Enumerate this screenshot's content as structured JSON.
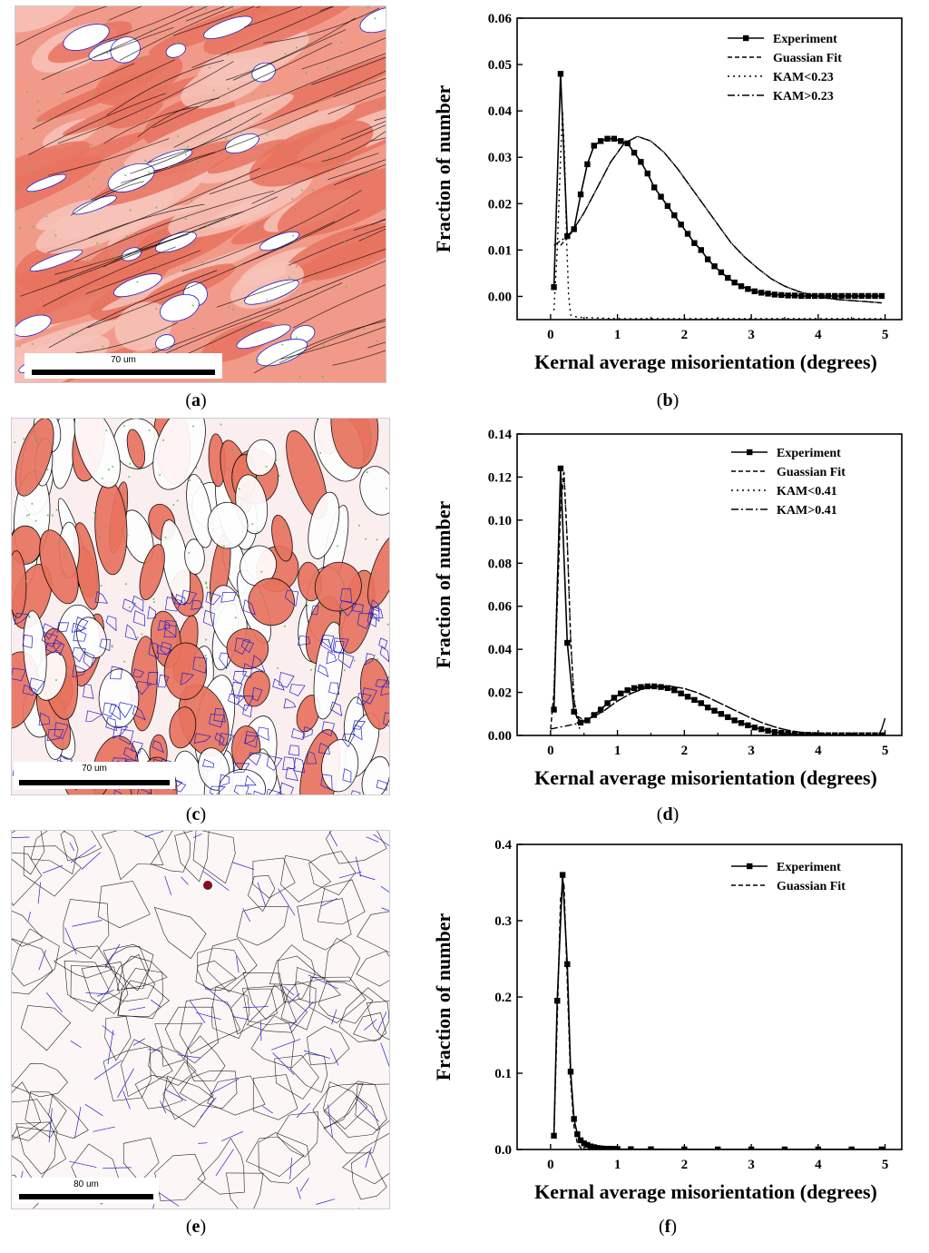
{
  "panels": [
    {
      "id": "a",
      "label": "a"
    },
    {
      "id": "b",
      "label": "b"
    },
    {
      "id": "c",
      "label": "c"
    },
    {
      "id": "d",
      "label": "d"
    },
    {
      "id": "e",
      "label": "e"
    },
    {
      "id": "f",
      "label": "f"
    }
  ],
  "maps": [
    {
      "id": "a",
      "scale_label": "70 um",
      "palette": "red"
    },
    {
      "id": "c",
      "scale_label": "70 um",
      "palette": "mixed"
    },
    {
      "id": "e",
      "scale_label": "80 um",
      "palette": "white"
    }
  ],
  "colors": {
    "deformed": "#e8735f",
    "recrystallized": "#ffffff",
    "boundary_black": "#000000",
    "boundary_blue": "#2020d0",
    "boundary_green": "#3cc83c"
  },
  "chart_data": [
    {
      "id": "b",
      "type": "line",
      "xlabel": "Kernal average misorientation (degrees)",
      "ylabel": "Fraction of number",
      "xlim": [
        -0.5,
        5.25
      ],
      "ylim": [
        -0.005,
        0.06
      ],
      "xticks": [
        "0",
        "1",
        "2",
        "3",
        "4",
        "5"
      ],
      "yticks": [
        "0.00",
        "0.01",
        "0.02",
        "0.03",
        "0.04",
        "0.05",
        "0.06"
      ],
      "legend_position": "top-right",
      "legend": [
        "Experiment",
        "Guassian Fit",
        "KAM<0.23",
        "KAM>0.23"
      ],
      "experiment": {
        "x": [
          0.05,
          0.15,
          0.25,
          0.35,
          0.45,
          0.55,
          0.65,
          0.75,
          0.85,
          0.95,
          1.05,
          1.15,
          1.25,
          1.35,
          1.45,
          1.55,
          1.65,
          1.75,
          1.85,
          1.95,
          2.05,
          2.15,
          2.25,
          2.35,
          2.45,
          2.55,
          2.65,
          2.75,
          2.85,
          2.95,
          3.05,
          3.15,
          3.25,
          3.35,
          3.45,
          3.55,
          3.65,
          3.75,
          3.85,
          3.95,
          4.05,
          4.15,
          4.25,
          4.35,
          4.45,
          4.55,
          4.65,
          4.75,
          4.85,
          4.95
        ],
        "y": [
          0.002,
          0.048,
          0.013,
          0.0145,
          0.022,
          0.0285,
          0.0325,
          0.0335,
          0.034,
          0.034,
          0.0335,
          0.033,
          0.031,
          0.029,
          0.0265,
          0.0235,
          0.0215,
          0.0195,
          0.0175,
          0.0155,
          0.0135,
          0.0115,
          0.01,
          0.008,
          0.0065,
          0.0052,
          0.004,
          0.003,
          0.0022,
          0.0016,
          0.0011,
          0.0008,
          0.0006,
          0.0004,
          0.0003,
          0.0002,
          0.0002,
          0.0001,
          0.0001,
          0.0001,
          0.0001,
          0.0001,
          0.0001,
          0.0001,
          0.0001,
          0.0001,
          0.0001,
          0.0001,
          0.0001,
          0.0001
        ]
      },
      "guassian_fit": {
        "x": [
          0.15,
          0.3,
          0.5,
          0.7,
          0.9,
          1.1,
          1.3,
          1.5,
          1.7,
          1.9,
          2.1,
          2.3,
          2.5,
          2.7,
          2.9,
          3.1,
          3.3,
          3.5,
          3.7,
          3.9,
          4.1,
          4.3,
          4.5,
          4.7,
          4.95
        ],
        "y": [
          0.011,
          0.0135,
          0.018,
          0.0235,
          0.029,
          0.033,
          0.0345,
          0.0335,
          0.031,
          0.0275,
          0.0235,
          0.0195,
          0.0155,
          0.0115,
          0.0085,
          0.006,
          0.0038,
          0.0022,
          0.0011,
          0.0003,
          -0.0003,
          -0.0007,
          -0.0009,
          -0.0011,
          -0.0014
        ]
      },
      "kam_low": {
        "x": [
          0.05,
          0.1,
          0.15,
          0.18,
          0.21,
          0.24,
          0.27,
          0.3,
          0.4,
          1.0,
          2.0,
          3.0,
          4.0,
          4.95
        ],
        "y": [
          -0.003,
          0.01,
          0.03,
          0.04,
          0.03,
          0.012,
          0.0,
          -0.004,
          -0.0045,
          -0.0048,
          -0.0048,
          -0.0048,
          -0.0048,
          -0.0048
        ]
      },
      "kam_high": {
        "x": [
          0.05,
          0.3,
          0.5,
          0.7,
          0.9,
          1.1,
          1.3,
          1.5,
          1.7,
          1.9,
          2.1,
          2.3,
          2.5,
          2.7,
          2.9,
          3.1,
          3.3,
          3.5,
          3.7,
          3.9,
          4.1,
          4.3,
          4.5,
          4.7,
          4.95
        ],
        "y": [
          0.011,
          0.0135,
          0.018,
          0.0235,
          0.029,
          0.033,
          0.0345,
          0.0335,
          0.031,
          0.0275,
          0.0235,
          0.0195,
          0.0155,
          0.0115,
          0.0085,
          0.006,
          0.0038,
          0.0022,
          0.0011,
          0.0003,
          -0.0003,
          -0.0007,
          -0.0009,
          -0.0011,
          -0.0014
        ]
      }
    },
    {
      "id": "d",
      "type": "line",
      "xlabel": "Kernal average misorientation (degrees)",
      "ylabel": "Fraction of number",
      "xlim": [
        -0.5,
        5.25
      ],
      "ylim": [
        0,
        0.14
      ],
      "xticks": [
        "0",
        "1",
        "2",
        "3",
        "4",
        "5"
      ],
      "yticks": [
        "0.00",
        "0.02",
        "0.04",
        "0.06",
        "0.08",
        "0.10",
        "0.12",
        "0.14"
      ],
      "legend_position": "top-right",
      "legend": [
        "Experiment",
        "Guassian Fit",
        "KAM<0.41",
        "KAM>0.41"
      ],
      "experiment": {
        "x": [
          0.05,
          0.15,
          0.25,
          0.35,
          0.45,
          0.55,
          0.65,
          0.75,
          0.85,
          0.95,
          1.05,
          1.15,
          1.25,
          1.35,
          1.45,
          1.55,
          1.65,
          1.75,
          1.85,
          1.95,
          2.05,
          2.15,
          2.25,
          2.35,
          2.45,
          2.55,
          2.65,
          2.75,
          2.85,
          2.95,
          3.05,
          3.15,
          3.25,
          3.35,
          3.45,
          3.55,
          3.65,
          3.75,
          3.85,
          3.95,
          4.05,
          4.15,
          4.25,
          4.35,
          4.45,
          4.55,
          4.65,
          4.75,
          4.85,
          4.95
        ],
        "y": [
          0.012,
          0.124,
          0.043,
          0.011,
          0.006,
          0.007,
          0.0095,
          0.012,
          0.015,
          0.0175,
          0.0195,
          0.021,
          0.022,
          0.0225,
          0.0228,
          0.0228,
          0.0225,
          0.022,
          0.021,
          0.0195,
          0.018,
          0.0165,
          0.015,
          0.013,
          0.0115,
          0.01,
          0.0085,
          0.007,
          0.0058,
          0.0047,
          0.0037,
          0.0029,
          0.0022,
          0.0016,
          0.0012,
          0.0009,
          0.0006,
          0.0004,
          0.0003,
          0.0002,
          0.0001,
          0.0001,
          0.0001,
          0.0001,
          0.0001,
          0.0001,
          0.0001,
          0.0001,
          0.0001,
          0.0001
        ]
      },
      "guassian_fit": {
        "x": [
          0.0,
          0.05,
          0.1,
          0.15,
          0.2,
          0.25,
          0.3,
          0.35,
          0.4,
          0.45,
          0.5,
          0.6,
          0.8,
          1.0,
          1.2,
          1.4,
          1.6,
          1.8,
          2.0,
          2.2,
          2.4,
          2.6,
          2.8,
          3.0,
          3.2,
          3.4,
          3.6,
          3.8,
          4.0,
          4.2,
          4.4,
          4.6,
          4.8,
          4.95
        ],
        "y": [
          0.003,
          0.02,
          0.06,
          0.105,
          0.122,
          0.09,
          0.045,
          0.016,
          0.009,
          0.008,
          0.0075,
          0.008,
          0.0115,
          0.016,
          0.0195,
          0.0218,
          0.0228,
          0.0228,
          0.0218,
          0.0198,
          0.017,
          0.014,
          0.011,
          0.008,
          0.0055,
          0.0035,
          0.0021,
          0.0012,
          0.0006,
          0.0003,
          0.0001,
          0.0,
          0.0,
          0.0
        ]
      },
      "kam_low": {
        "x": [
          0.05,
          0.1,
          0.15,
          0.2,
          0.25,
          0.3,
          0.35,
          0.4,
          0.45
        ],
        "y": [
          0.02,
          0.07,
          0.112,
          0.123,
          0.09,
          0.045,
          0.018,
          0.006,
          0.002
        ]
      },
      "kam_high": {
        "x": [
          0.0,
          0.4,
          0.6,
          0.8,
          1.0,
          1.2,
          1.4,
          1.6,
          1.8,
          2.0,
          2.2,
          2.4,
          2.6,
          2.8,
          3.0,
          3.2,
          3.4,
          3.6,
          3.8,
          4.0,
          4.2,
          4.4,
          4.6,
          4.8,
          4.95
        ],
        "y": [
          0.003,
          0.0055,
          0.008,
          0.0115,
          0.016,
          0.0195,
          0.0218,
          0.0228,
          0.0228,
          0.0218,
          0.0198,
          0.017,
          0.014,
          0.011,
          0.008,
          0.0055,
          0.0035,
          0.0021,
          0.0012,
          0.0006,
          0.0003,
          0.0001,
          0.0,
          0.0,
          0.0
        ]
      },
      "endpoint_spike": {
        "x": [
          4.9,
          4.95,
          5.0
        ],
        "y": [
          0.0,
          0.003,
          0.008
        ]
      }
    },
    {
      "id": "f",
      "type": "line",
      "xlabel": "Kernal average misorientation (degrees)",
      "ylabel": "Fraction of number",
      "xlim": [
        -0.5,
        5.25
      ],
      "ylim": [
        0,
        0.4
      ],
      "xticks": [
        "0",
        "1",
        "2",
        "3",
        "4",
        "5"
      ],
      "yticks": [
        "0.0",
        "0.1",
        "0.2",
        "0.3",
        "0.4"
      ],
      "legend_position": "top-right",
      "legend": [
        "Experiment",
        "Guassian Fit"
      ],
      "experiment": {
        "x": [
          0.05,
          0.1,
          0.18,
          0.25,
          0.3,
          0.35,
          0.4,
          0.45,
          0.5,
          0.55,
          0.6,
          0.65,
          0.7,
          0.75,
          0.8,
          0.85,
          0.9,
          0.95,
          1.0,
          1.2,
          1.5,
          2.0,
          2.5,
          3.0,
          3.5,
          4.0,
          4.5,
          4.95
        ],
        "y": [
          0.018,
          0.195,
          0.36,
          0.243,
          0.102,
          0.04,
          0.02,
          0.012,
          0.008,
          0.006,
          0.004,
          0.003,
          0.002,
          0.0015,
          0.001,
          0.001,
          0.001,
          0.0008,
          0.0006,
          0.0004,
          0.0003,
          0.0002,
          0.0001,
          0.0001,
          0.0001,
          0.0001,
          0.0001,
          0.0001
        ]
      },
      "guassian_fit": {
        "x": [
          0.05,
          0.1,
          0.15,
          0.2,
          0.25,
          0.3,
          0.35,
          0.4,
          0.45,
          0.5,
          0.6,
          0.8,
          1.0,
          2.0,
          3.0,
          4.0,
          4.95
        ],
        "y": [
          0.02,
          0.17,
          0.33,
          0.35,
          0.22,
          0.09,
          0.03,
          0.008,
          0.002,
          0.0005,
          0.0,
          0.0,
          0.0,
          0.0,
          0.0,
          0.0,
          0.0
        ]
      }
    }
  ]
}
